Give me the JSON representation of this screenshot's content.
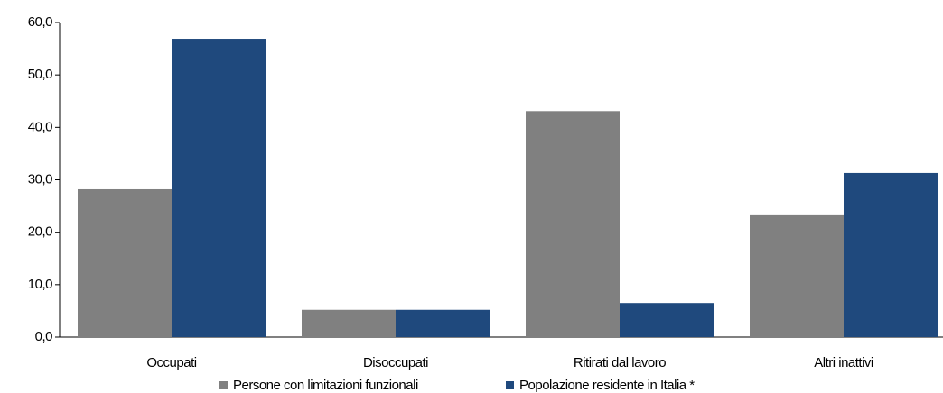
{
  "chart_data": {
    "type": "bar",
    "categories": [
      "Occupati",
      "Disoccupati",
      "Ritirati dal lavoro",
      "Altri inattivi"
    ],
    "series": [
      {
        "name": "Persone con limitazioni funzionali",
        "color": "#808080",
        "values": [
          28.2,
          5.2,
          43.1,
          23.4
        ]
      },
      {
        "name": "Popolazione residente in Italia *",
        "color": "#1f497d",
        "values": [
          56.9,
          5.2,
          6.5,
          31.3
        ]
      }
    ],
    "ylim": [
      0,
      60
    ],
    "yticks": [
      {
        "value": 0,
        "label": "0,0"
      },
      {
        "value": 10,
        "label": "10,0"
      },
      {
        "value": 20,
        "label": "20,0"
      },
      {
        "value": 30,
        "label": "30,0"
      },
      {
        "value": 40,
        "label": "40,0"
      },
      {
        "value": 50,
        "label": "50,0"
      },
      {
        "value": 60,
        "label": "60,0"
      }
    ],
    "grid": false,
    "legend": "bottom"
  }
}
